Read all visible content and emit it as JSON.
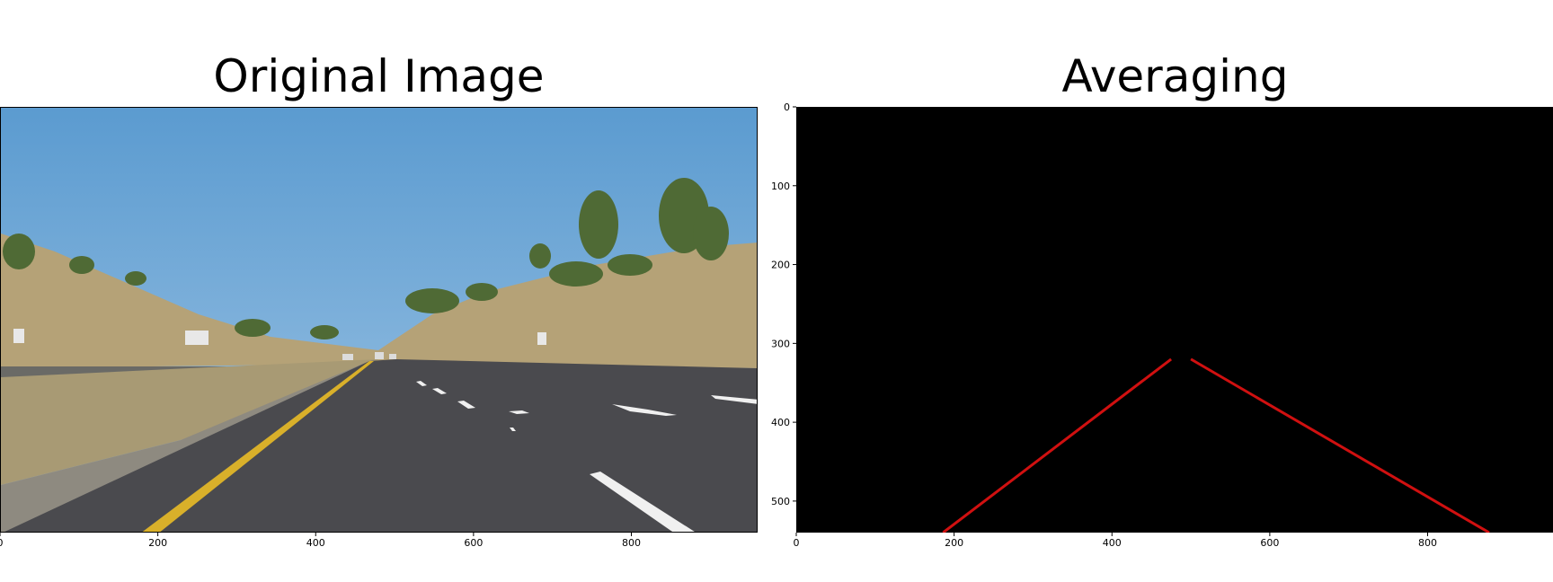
{
  "chart_data": [
    {
      "type": "image",
      "title": "Original Image",
      "scene": "highway-dashcam-photo",
      "xlim": [
        0,
        960
      ],
      "ylim": [
        540,
        0
      ],
      "xticks": [
        0,
        200,
        400,
        600,
        800
      ],
      "xtick_labels": [
        "0",
        "200",
        "400",
        "600",
        "800"
      ],
      "colors": {
        "sky_top": "#5b9bd0",
        "sky_bottom": "#9ec4e4",
        "hills": "#b5a277",
        "vegetation": "#4f6a35",
        "road": "#4a4a4e",
        "yellow_lane": "#d9b02a",
        "white_lane": "#f0f0f0"
      }
    },
    {
      "type": "line",
      "title": "Averaging",
      "xlim": [
        0,
        960
      ],
      "ylim": [
        540,
        0
      ],
      "xticks": [
        0,
        200,
        400,
        600,
        800
      ],
      "xtick_labels": [
        "0",
        "200",
        "400",
        "600",
        "800"
      ],
      "yticks": [
        0,
        100,
        200,
        300,
        400,
        500
      ],
      "ytick_labels": [
        "0",
        "100",
        "200",
        "300",
        "400",
        "500"
      ],
      "background": "#000000",
      "line_color": "#d01010",
      "series": [
        {
          "x": [
            186,
            475
          ],
          "y": [
            540,
            320
          ]
        },
        {
          "x": [
            500,
            878
          ],
          "y": [
            320,
            540
          ]
        }
      ]
    }
  ]
}
